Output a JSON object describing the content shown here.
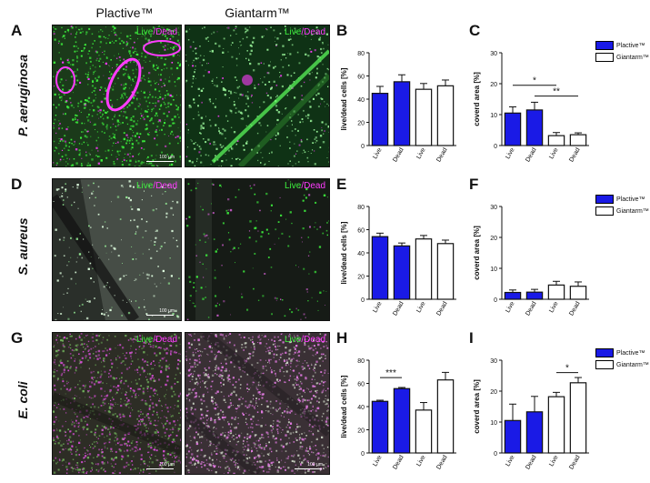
{
  "columns": {
    "plactive": "Plactive™",
    "giantarm": "Giantarm™"
  },
  "rows": [
    {
      "letter": "A",
      "species": "P. aeruginosa"
    },
    {
      "letter": "D",
      "species": "S. aureus"
    },
    {
      "letter": "G",
      "species": "E. coli"
    }
  ],
  "image_labels": {
    "live": "Live",
    "slash": "/",
    "dead": "Dead",
    "scale": "100 µm"
  },
  "legend": {
    "plactive": "Plactive™",
    "giantarm": "Giantarm™"
  },
  "colors": {
    "plactive": "#1a1ae6",
    "giantarm": "#ffffff",
    "live_stain": "#3df03d",
    "dead_stain": "#ff3cff"
  },
  "chart_data": [
    {
      "id": "B",
      "type": "bar",
      "ylabel": "live/dead cells [%]",
      "ylim": [
        0,
        80
      ],
      "yticks": [
        0,
        20,
        40,
        60,
        80
      ],
      "categories": [
        "Live",
        "Dead",
        "Live",
        "Dead"
      ],
      "groups": [
        "plactive",
        "plactive",
        "giantarm",
        "giantarm"
      ],
      "values": [
        45,
        55,
        48.5,
        51.5
      ],
      "errors": [
        6,
        6,
        5,
        5
      ],
      "significance": []
    },
    {
      "id": "C",
      "type": "bar",
      "ylabel": "coverd area [%]",
      "ylim": [
        0,
        30
      ],
      "yticks": [
        0,
        10,
        20,
        30
      ],
      "categories": [
        "Live",
        "Dead",
        "Live",
        "Dead"
      ],
      "groups": [
        "plactive",
        "plactive",
        "giantarm",
        "giantarm"
      ],
      "values": [
        10.5,
        11.5,
        3.2,
        3.5
      ],
      "errors": [
        2,
        2.5,
        1,
        0.6
      ],
      "significance": [
        {
          "from": 0,
          "to": 2,
          "label": "*",
          "y": 19.5
        },
        {
          "from": 1,
          "to": 3,
          "label": "**",
          "y": 16
        }
      ]
    },
    {
      "id": "E",
      "type": "bar",
      "ylabel": "live/dead cells [%]",
      "ylim": [
        0,
        80
      ],
      "yticks": [
        0,
        20,
        40,
        60,
        80
      ],
      "categories": [
        "Live",
        "Dead",
        "Live",
        "Dead"
      ],
      "groups": [
        "plactive",
        "plactive",
        "giantarm",
        "giantarm"
      ],
      "values": [
        54,
        46,
        52,
        48
      ],
      "errors": [
        3,
        2.5,
        3,
        3
      ],
      "significance": []
    },
    {
      "id": "F",
      "type": "bar",
      "ylabel": "coverd area [%]",
      "ylim": [
        0,
        30
      ],
      "yticks": [
        0,
        10,
        20,
        30
      ],
      "categories": [
        "Live",
        "Dead",
        "Live",
        "Dead"
      ],
      "groups": [
        "plactive",
        "plactive",
        "giantarm",
        "giantarm"
      ],
      "values": [
        2.2,
        2.3,
        4.6,
        4.2
      ],
      "errors": [
        0.8,
        0.9,
        1.2,
        1.4
      ],
      "significance": []
    },
    {
      "id": "H",
      "type": "bar",
      "ylabel": "live/dead cells [%]",
      "ylim": [
        0,
        80
      ],
      "yticks": [
        0,
        20,
        40,
        60,
        80
      ],
      "categories": [
        "Live",
        "Dead",
        "Live",
        "Dead"
      ],
      "groups": [
        "plactive",
        "plactive",
        "giantarm",
        "giantarm"
      ],
      "values": [
        44.5,
        55.5,
        37,
        63
      ],
      "errors": [
        1,
        1,
        6.5,
        6.5
      ],
      "significance": [
        {
          "from": 0,
          "to": 1,
          "label": "***",
          "y": 65
        }
      ]
    },
    {
      "id": "I",
      "type": "bar",
      "ylabel": "coverd area [%]",
      "ylim": [
        0,
        30
      ],
      "yticks": [
        0,
        10,
        20,
        30
      ],
      "categories": [
        "Live",
        "Dead",
        "Live",
        "Dead"
      ],
      "groups": [
        "plactive",
        "plactive",
        "giantarm",
        "giantarm"
      ],
      "values": [
        10.5,
        13.3,
        18.2,
        22.7
      ],
      "errors": [
        5.3,
        5,
        1.4,
        1.7
      ],
      "significance": [
        {
          "from": 2,
          "to": 3,
          "label": "*",
          "y": 26
        }
      ]
    }
  ]
}
